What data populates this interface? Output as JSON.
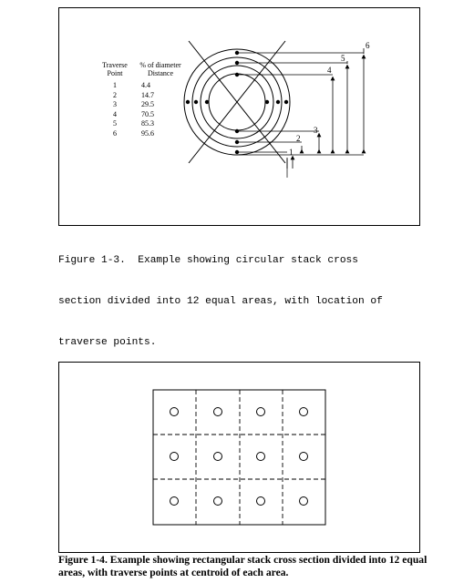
{
  "figure_1_3": {
    "table": {
      "col1_header_line1": "Traverse",
      "col1_header_line2": "Point",
      "col2_header_line1": "% of diameter",
      "col2_header_line2": "Distance",
      "rows": [
        {
          "point": "1",
          "distance": "4.4"
        },
        {
          "point": "2",
          "distance": "14.7"
        },
        {
          "point": "3",
          "distance": "29.5"
        },
        {
          "point": "4",
          "distance": "70.5"
        },
        {
          "point": "5",
          "distance": "85.3"
        },
        {
          "point": "6",
          "distance": "95.6"
        }
      ]
    },
    "dimension_labels": [
      "1",
      "2",
      "3",
      "4",
      "5",
      "6"
    ],
    "caption_line1": "Figure 1-3.  Example showing circular stack cross",
    "caption_line2": "section divided into 12 equal areas, with location of",
    "caption_line3": "traverse points."
  },
  "figure_1_4": {
    "caption": "Figure 1-4. Example showing rectangular stack cross section divided into 12 equal areas, with traverse points at centroid of each area."
  }
}
